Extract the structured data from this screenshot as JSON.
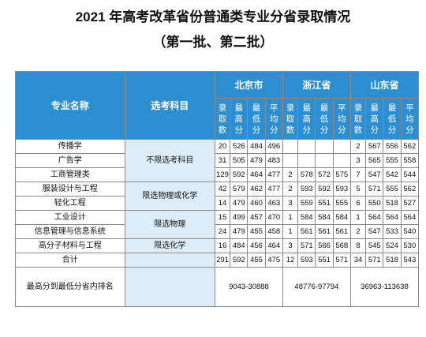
{
  "title": "2021 年高考改革省份普通类专业分省录取情况",
  "subtitle": "（第一批、第二批）",
  "header": {
    "major": "专业名称",
    "subjects": "选考科目",
    "regions": [
      "北京市",
      "浙江省",
      "山东省"
    ],
    "cols": [
      "录取数",
      "最高分",
      "最低分",
      "平均分"
    ]
  },
  "subject_groups": [
    "不限选考科目",
    "限选物理或化学",
    "限选物理",
    "限选化学"
  ],
  "rows": [
    {
      "name": "传播学",
      "bj": [
        "20",
        "526",
        "484",
        "496"
      ],
      "zj": [
        "",
        "",
        "",
        ""
      ],
      "sd": [
        "2",
        "567",
        "556",
        "562"
      ]
    },
    {
      "name": "广告学",
      "bj": [
        "31",
        "505",
        "479",
        "483"
      ],
      "zj": [
        "",
        "",
        "",
        ""
      ],
      "sd": [
        "3",
        "565",
        "555",
        "558"
      ]
    },
    {
      "name": "工商管理类",
      "bj": [
        "129",
        "592",
        "464",
        "477"
      ],
      "zj": [
        "2",
        "578",
        "572",
        "575"
      ],
      "sd": [
        "7",
        "547",
        "542",
        "544"
      ]
    },
    {
      "name": "服装设计与工程",
      "bj": [
        "42",
        "579",
        "462",
        "477"
      ],
      "zj": [
        "2",
        "593",
        "592",
        "593"
      ],
      "sd": [
        "5",
        "571",
        "555",
        "562"
      ]
    },
    {
      "name": "轻化工程",
      "bj": [
        "14",
        "479",
        "460",
        "463"
      ],
      "zj": [
        "3",
        "559",
        "551",
        "555"
      ],
      "sd": [
        "6",
        "550",
        "518",
        "527"
      ]
    },
    {
      "name": "工业设计",
      "bj": [
        "15",
        "499",
        "457",
        "470"
      ],
      "zj": [
        "1",
        "584",
        "584",
        "584"
      ],
      "sd": [
        "1",
        "564",
        "564",
        "564"
      ]
    },
    {
      "name": "信息管理与信息系统",
      "bj": [
        "24",
        "479",
        "455",
        "458"
      ],
      "zj": [
        "1",
        "561",
        "561",
        "561"
      ],
      "sd": [
        "2",
        "547",
        "533",
        "540"
      ]
    },
    {
      "name": "高分子材料与工程",
      "bj": [
        "16",
        "484",
        "456",
        "464"
      ],
      "zj": [
        "3",
        "571",
        "566",
        "568"
      ],
      "sd": [
        "8",
        "545",
        "524",
        "530"
      ]
    }
  ],
  "total": {
    "name": "合计",
    "bj": [
      "291",
      "592",
      "455",
      "475"
    ],
    "zj": [
      "12",
      "593",
      "551",
      "571"
    ],
    "sd": [
      "34",
      "571",
      "518",
      "543"
    ]
  },
  "rank": {
    "label": "最高分到最低分省内排名",
    "bj": "9043-30888",
    "zj": "48776-97794",
    "sd": "36963-113638"
  }
}
